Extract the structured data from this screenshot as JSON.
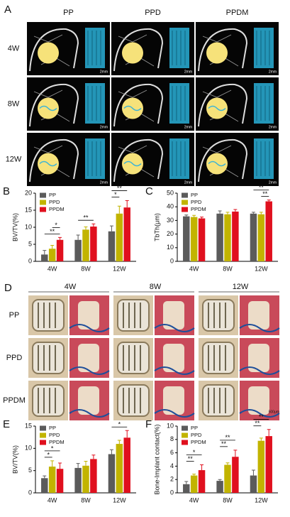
{
  "panels": {
    "A": {
      "label": "A",
      "columns": [
        "PP",
        "PPD",
        "PPDM"
      ],
      "rows": [
        "4W",
        "8W",
        "12W"
      ],
      "scale": "2mm"
    },
    "D": {
      "label": "D",
      "columns": [
        "4W",
        "8W",
        "12W"
      ],
      "rows": [
        "PP",
        "PPD",
        "PPDM"
      ],
      "scale": "500μm"
    }
  },
  "chart_data": [
    {
      "type": "bar",
      "label": "B",
      "y_label": "BV/TV(%)",
      "categories": [
        "4W",
        "8W",
        "12W"
      ],
      "series": [
        {
          "name": "PP",
          "color": "#5b5b5b",
          "values": [
            2,
            6.3,
            8.8
          ],
          "errors": [
            1.2,
            1.4,
            1.6
          ]
        },
        {
          "name": "PPD",
          "color": "#c2b400",
          "values": [
            3.7,
            9.3,
            14
          ],
          "errors": [
            1,
            0.8,
            2.2
          ]
        },
        {
          "name": "PPDM",
          "color": "#e0101e",
          "values": [
            6.3,
            10.2,
            15.8
          ],
          "errors": [
            0.7,
            0.8,
            2
          ]
        }
      ],
      "ylim": [
        0,
        20
      ],
      "yticks": [
        0,
        5,
        10,
        15,
        20
      ],
      "legend": "top-left",
      "annotations": [
        {
          "text": "**",
          "category": "4W",
          "from": "PP",
          "to": "PPDM"
        },
        {
          "text": "*",
          "category": "4W",
          "from": "PPD",
          "to": "PPDM"
        },
        {
          "text": "**",
          "category": "8W",
          "from": "PP",
          "to": "PPDM"
        },
        {
          "text": "*",
          "category": "12W",
          "from": "PP",
          "to": "PPD"
        },
        {
          "text": "**",
          "category": "12W",
          "from": "PP",
          "to": "PPDM"
        }
      ]
    },
    {
      "type": "bar",
      "label": "C",
      "y_label": "TbTh(μm)",
      "categories": [
        "4W",
        "8W",
        "12W"
      ],
      "series": [
        {
          "name": "PP",
          "color": "#5b5b5b",
          "values": [
            33,
            35,
            35
          ],
          "errors": [
            1,
            2,
            1
          ]
        },
        {
          "name": "PPD",
          "color": "#c2b400",
          "values": [
            32.5,
            34.5,
            34.5
          ],
          "errors": [
            1.2,
            1.5,
            1.5
          ]
        },
        {
          "name": "PPDM",
          "color": "#e0101e",
          "values": [
            31.5,
            36.5,
            44
          ],
          "errors": [
            1,
            1.5,
            1
          ]
        }
      ],
      "ylim": [
        0,
        50
      ],
      "yticks": [
        0,
        10,
        20,
        30,
        40,
        50
      ],
      "legend": "top-left",
      "annotations": [
        {
          "text": "**",
          "category": "12W",
          "from": "PPD",
          "to": "PPDM"
        },
        {
          "text": "**",
          "category": "12W",
          "from": "PP",
          "to": "PPDM"
        }
      ]
    },
    {
      "type": "bar",
      "label": "E",
      "y_label": "BV/TV(%)",
      "categories": [
        "4W",
        "8W",
        "12W"
      ],
      "series": [
        {
          "name": "PP",
          "color": "#5b5b5b",
          "values": [
            3.3,
            5.6,
            8.7
          ],
          "errors": [
            0.5,
            1,
            1
          ]
        },
        {
          "name": "PPD",
          "color": "#c2b400",
          "values": [
            5.9,
            6.1,
            11
          ],
          "errors": [
            1.3,
            1,
            0.8
          ]
        },
        {
          "name": "PPDM",
          "color": "#e0101e",
          "values": [
            5.4,
            7.6,
            12.4
          ],
          "errors": [
            1.3,
            0.9,
            1.6
          ]
        }
      ],
      "ylim": [
        0,
        15
      ],
      "yticks": [
        0,
        5,
        10,
        15
      ],
      "legend": "top-left",
      "annotations": [
        {
          "text": "*",
          "category": "4W",
          "from": "PP",
          "to": "PPD"
        },
        {
          "text": "*",
          "category": "4W",
          "from": "PP",
          "to": "PPDM"
        },
        {
          "text": "*",
          "category": "12W",
          "from": "PP",
          "to": "PPDM"
        }
      ]
    },
    {
      "type": "bar",
      "label": "F",
      "y_label": "Bone-Implant contact(%)",
      "categories": [
        "4W",
        "8W",
        "12W"
      ],
      "series": [
        {
          "name": "PP",
          "color": "#5b5b5b",
          "values": [
            1.3,
            1.8,
            2.6
          ],
          "errors": [
            0.4,
            0.2,
            0.8
          ]
        },
        {
          "name": "PPD",
          "color": "#c2b400",
          "values": [
            2.6,
            4.2,
            7.8
          ],
          "errors": [
            0.2,
            0.3,
            0.4
          ]
        },
        {
          "name": "PPDM",
          "color": "#e0101e",
          "values": [
            3.4,
            5.4,
            8.5
          ],
          "errors": [
            0.8,
            1,
            1
          ]
        }
      ],
      "ylim": [
        0,
        10
      ],
      "yticks": [
        0,
        2,
        4,
        6,
        8,
        10
      ],
      "legend": "top-left",
      "annotations": [
        {
          "text": "**",
          "category": "4W",
          "from": "PP",
          "to": "PPD"
        },
        {
          "text": "*",
          "category": "4W",
          "from": "PP",
          "to": "PPDM"
        },
        {
          "text": "**",
          "category": "8W",
          "from": "PP",
          "to": "PPD"
        },
        {
          "text": "**",
          "category": "8W",
          "from": "PP",
          "to": "PPDM"
        },
        {
          "text": "**",
          "category": "12W",
          "from": "PP",
          "to": "PPD"
        },
        {
          "text": "**",
          "category": "12W",
          "from": "PP",
          "to": "PPDM"
        }
      ]
    }
  ]
}
